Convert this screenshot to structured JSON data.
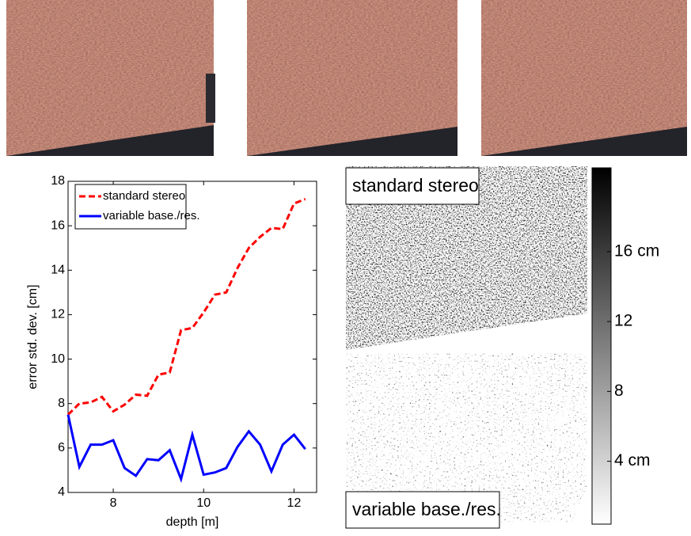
{
  "chart_data": {
    "type": "line",
    "xlabel": "depth [m]",
    "ylabel": "error std. dev. [cm]",
    "x": [
      7,
      7.25,
      7.5,
      7.75,
      8,
      8.25,
      8.5,
      8.75,
      9,
      9.25,
      9.5,
      9.75,
      10,
      10.25,
      10.5,
      10.75,
      11,
      11.25,
      11.5,
      11.75,
      12,
      12.25
    ],
    "series": [
      {
        "name": "standard stereo",
        "color": "#ff0000",
        "dash": true,
        "values": [
          7.5,
          8.0,
          8.05,
          8.3,
          7.65,
          7.95,
          8.4,
          8.35,
          9.3,
          9.4,
          11.3,
          11.4,
          12.1,
          12.9,
          13.0,
          14.1,
          15.0,
          15.5,
          15.9,
          15.85,
          17.0,
          17.2
        ]
      },
      {
        "name": "variable base./res.",
        "color": "#0000ff",
        "dash": false,
        "values": [
          7.5,
          5.15,
          6.15,
          6.15,
          6.35,
          5.1,
          4.75,
          5.5,
          5.45,
          5.9,
          4.6,
          6.6,
          4.8,
          4.9,
          5.1,
          6.05,
          6.75,
          6.15,
          4.95,
          6.15,
          6.6,
          5.95
        ]
      }
    ],
    "xlim": [
      7,
      12.5
    ],
    "xticks": [
      8,
      10,
      12
    ],
    "ylim": [
      4,
      18
    ],
    "yticks": [
      4,
      6,
      8,
      10,
      12,
      14,
      16,
      18
    ],
    "legend": "upper left",
    "grid": false
  },
  "error_maps": {
    "top_label": "standard stereo",
    "bottom_label": "variable base./res."
  },
  "colorbar": {
    "lim": [
      0.4,
      20.8
    ],
    "ticks": [
      {
        "value": 4,
        "label": "4 cm"
      },
      8,
      12,
      {
        "value": 16,
        "label": "16 cm"
      }
    ]
  }
}
